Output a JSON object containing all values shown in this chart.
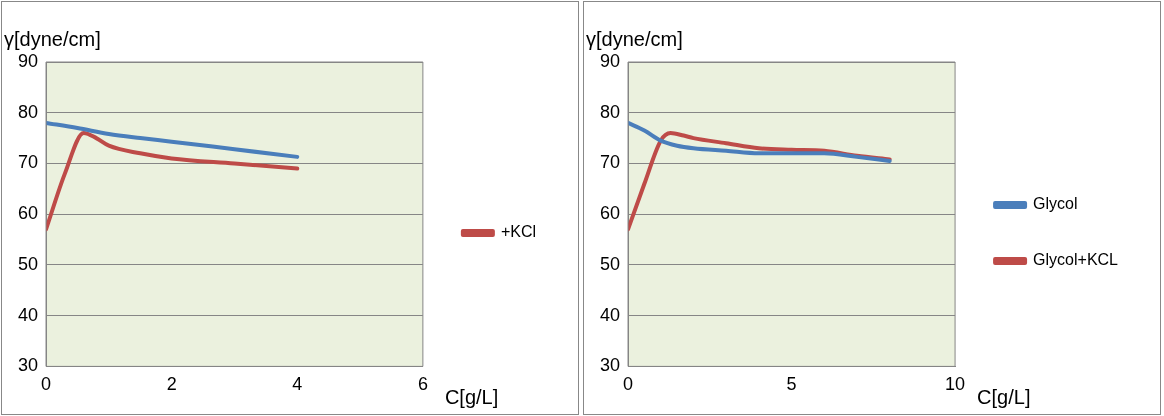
{
  "chart_data": [
    {
      "type": "line",
      "xlabel": "C[g/L]",
      "ylabel": "γ[dyne/cm]",
      "xlim": [
        0,
        6
      ],
      "xticks": [
        0,
        2,
        4,
        6
      ],
      "ylim": [
        30,
        90
      ],
      "yticks": [
        30,
        40,
        50,
        60,
        70,
        80,
        90
      ],
      "grid": "y",
      "legend": "right",
      "marker": "none",
      "series": [
        {
          "color": "#4a7ebb",
          "x": [
            0,
            0.5,
            1,
            1.5,
            2,
            3,
            4
          ],
          "values": [
            78,
            77,
            75.8,
            75,
            74.3,
            72.8,
            71.3
          ]
        },
        {
          "name": "+KCl",
          "color": "#be4b48",
          "x": [
            0,
            0.3,
            0.6,
            0.8,
            1,
            1.5,
            2,
            3,
            4
          ],
          "values": [
            57,
            68,
            76,
            75,
            73.5,
            72,
            71,
            70,
            69
          ]
        }
      ]
    },
    {
      "type": "line",
      "xlabel": "C[g/L]",
      "ylabel": "γ[dyne/cm]",
      "xlim": [
        0,
        10
      ],
      "xticks": [
        0,
        5,
        10
      ],
      "ylim": [
        30,
        90
      ],
      "yticks": [
        30,
        40,
        50,
        60,
        70,
        80,
        90
      ],
      "grid": "y",
      "legend": "right",
      "marker": "none",
      "series": [
        {
          "name": "Glycol",
          "color": "#4a7ebb",
          "x": [
            0,
            0.5,
            1,
            1.5,
            2,
            3,
            4,
            5,
            6,
            7,
            8
          ],
          "values": [
            78,
            76.5,
            74.5,
            73.5,
            73,
            72.5,
            72,
            72,
            72,
            71.3,
            70.5
          ]
        },
        {
          "name": "Glycol+KCL",
          "color": "#be4b48",
          "x": [
            0,
            0.5,
            1,
            1.3,
            1.7,
            2,
            3,
            4,
            5,
            6,
            7,
            8
          ],
          "values": [
            57,
            66,
            74.5,
            76,
            75.5,
            75,
            74,
            73,
            72.7,
            72.5,
            71.5,
            70.8
          ]
        }
      ]
    }
  ]
}
